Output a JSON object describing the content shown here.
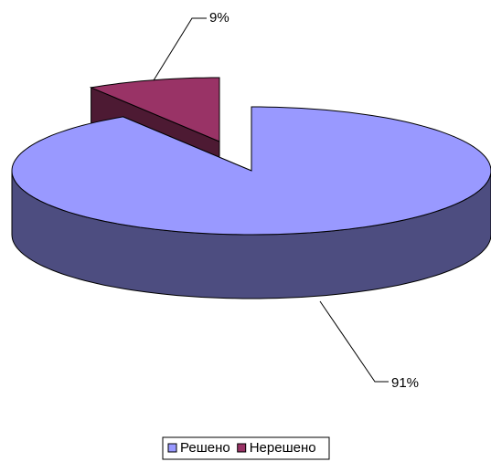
{
  "chart_data": {
    "type": "pie3d",
    "categories": [
      "Решено",
      "Нерешено"
    ],
    "values": [
      91,
      9
    ],
    "value_labels": [
      "91%",
      "9%"
    ],
    "colors": [
      "#9999ff",
      "#993366"
    ],
    "side_colors": [
      "#4d4d80",
      "#4d1a33"
    ],
    "legend": "bottom"
  }
}
